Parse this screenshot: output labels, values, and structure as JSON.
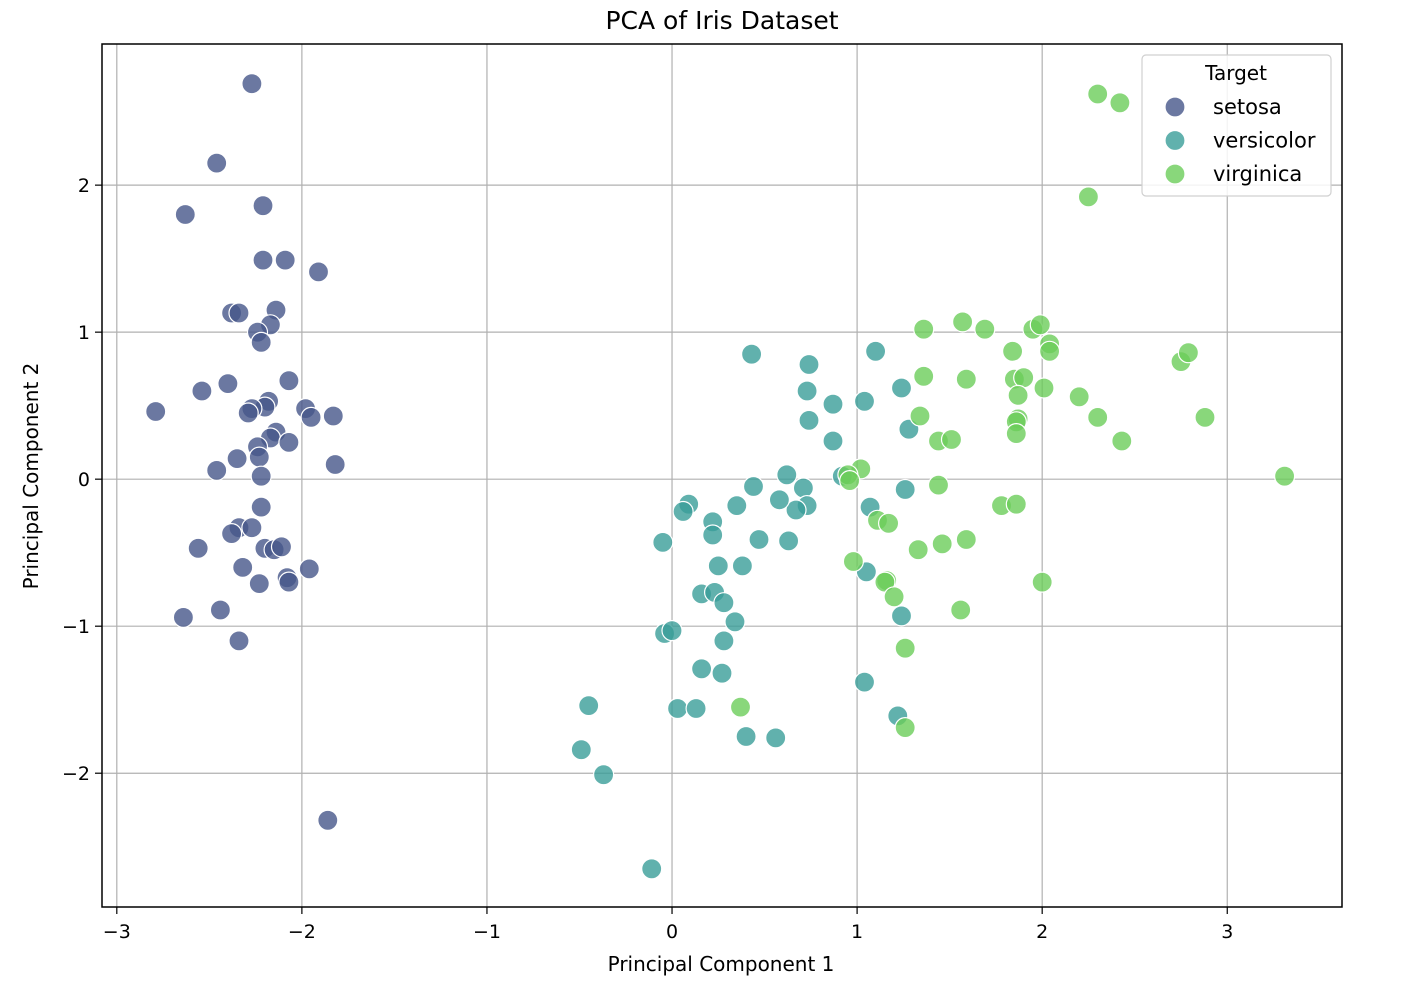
{
  "chart_data": {
    "type": "scatter",
    "title": "PCA of Iris Dataset",
    "xlabel": "Principal Component 1",
    "ylabel": "Principal Component 2",
    "xlim": [
      -3.08,
      3.62
    ],
    "ylim": [
      -2.91,
      2.96
    ],
    "x_ticks": [
      -3,
      -2,
      -1,
      0,
      1,
      2,
      3
    ],
    "x_tick_labels": [
      "−3",
      "−2",
      "−1",
      "0",
      "1",
      "2",
      "3"
    ],
    "y_ticks": [
      -2,
      -1,
      0,
      1,
      2
    ],
    "y_tick_labels": [
      "−2",
      "−1",
      "0",
      "1",
      "2"
    ],
    "grid": true,
    "legend": {
      "title": "Target",
      "placement": "top-right"
    },
    "series": [
      {
        "name": "setosa",
        "color": "#46568a",
        "points": [
          [
            -2.27,
            2.69
          ],
          [
            -2.46,
            2.15
          ],
          [
            -2.63,
            1.8
          ],
          [
            -2.21,
            1.86
          ],
          [
            -2.21,
            1.49
          ],
          [
            -2.09,
            1.49
          ],
          [
            -1.91,
            1.41
          ],
          [
            -2.38,
            1.13
          ],
          [
            -2.34,
            1.13
          ],
          [
            -2.14,
            1.15
          ],
          [
            -2.17,
            1.05
          ],
          [
            -2.24,
            1.0
          ],
          [
            -2.22,
            0.93
          ],
          [
            -2.07,
            0.67
          ],
          [
            -2.4,
            0.65
          ],
          [
            -2.54,
            0.6
          ],
          [
            -2.79,
            0.46
          ],
          [
            -2.18,
            0.53
          ],
          [
            -2.2,
            0.49
          ],
          [
            -2.27,
            0.48
          ],
          [
            -2.29,
            0.45
          ],
          [
            -1.98,
            0.48
          ],
          [
            -1.95,
            0.42
          ],
          [
            -1.83,
            0.43
          ],
          [
            -2.14,
            0.32
          ],
          [
            -2.17,
            0.28
          ],
          [
            -2.24,
            0.22
          ],
          [
            -2.07,
            0.25
          ],
          [
            -2.35,
            0.14
          ],
          [
            -2.23,
            0.15
          ],
          [
            -2.46,
            0.06
          ],
          [
            -2.22,
            0.02
          ],
          [
            -1.82,
            0.1
          ],
          [
            -2.22,
            -0.19
          ],
          [
            -2.34,
            -0.33
          ],
          [
            -2.38,
            -0.37
          ],
          [
            -2.27,
            -0.33
          ],
          [
            -2.2,
            -0.47
          ],
          [
            -2.15,
            -0.48
          ],
          [
            -2.11,
            -0.46
          ],
          [
            -2.56,
            -0.47
          ],
          [
            -2.32,
            -0.6
          ],
          [
            -2.08,
            -0.67
          ],
          [
            -2.07,
            -0.7
          ],
          [
            -1.96,
            -0.61
          ],
          [
            -2.23,
            -0.71
          ],
          [
            -2.44,
            -0.89
          ],
          [
            -2.64,
            -0.94
          ],
          [
            -2.34,
            -1.1
          ],
          [
            -1.86,
            -2.32
          ]
        ]
      },
      {
        "name": "versicolor",
        "color": "#3a9e98",
        "points": [
          [
            0.43,
            0.85
          ],
          [
            0.74,
            0.78
          ],
          [
            1.1,
            0.87
          ],
          [
            0.73,
            0.6
          ],
          [
            0.87,
            0.51
          ],
          [
            1.04,
            0.53
          ],
          [
            1.24,
            0.62
          ],
          [
            0.74,
            0.4
          ],
          [
            0.87,
            0.26
          ],
          [
            1.28,
            0.34
          ],
          [
            0.62,
            0.03
          ],
          [
            0.71,
            -0.06
          ],
          [
            0.73,
            -0.18
          ],
          [
            0.67,
            -0.21
          ],
          [
            0.58,
            -0.14
          ],
          [
            0.44,
            -0.05
          ],
          [
            0.35,
            -0.18
          ],
          [
            0.09,
            -0.17
          ],
          [
            0.06,
            -0.22
          ],
          [
            0.22,
            -0.29
          ],
          [
            0.22,
            -0.38
          ],
          [
            0.47,
            -0.41
          ],
          [
            0.63,
            -0.42
          ],
          [
            1.07,
            -0.19
          ],
          [
            1.26,
            -0.07
          ],
          [
            -0.05,
            -0.43
          ],
          [
            0.38,
            -0.59
          ],
          [
            0.25,
            -0.59
          ],
          [
            1.05,
            -0.63
          ],
          [
            1.24,
            -0.93
          ],
          [
            0.16,
            -0.78
          ],
          [
            0.23,
            -0.77
          ],
          [
            0.28,
            -0.84
          ],
          [
            0.34,
            -0.97
          ],
          [
            0.28,
            -1.1
          ],
          [
            -0.04,
            -1.05
          ],
          [
            0.0,
            -1.03
          ],
          [
            0.16,
            -1.29
          ],
          [
            0.27,
            -1.32
          ],
          [
            1.04,
            -1.38
          ],
          [
            0.03,
            -1.56
          ],
          [
            0.13,
            -1.56
          ],
          [
            -0.45,
            -1.54
          ],
          [
            -0.49,
            -1.84
          ],
          [
            -0.37,
            -2.01
          ],
          [
            0.4,
            -1.75
          ],
          [
            0.56,
            -1.76
          ],
          [
            1.22,
            -1.61
          ],
          [
            -0.11,
            -2.65
          ],
          [
            0.92,
            0.02
          ]
        ]
      },
      {
        "name": "virginica",
        "color": "#6ccd5a",
        "points": [
          [
            2.3,
            2.62
          ],
          [
            2.42,
            2.56
          ],
          [
            2.25,
            1.92
          ],
          [
            1.36,
            1.02
          ],
          [
            1.57,
            1.07
          ],
          [
            1.69,
            1.02
          ],
          [
            1.95,
            1.02
          ],
          [
            1.99,
            1.05
          ],
          [
            2.04,
            0.92
          ],
          [
            2.04,
            0.87
          ],
          [
            1.84,
            0.87
          ],
          [
            2.75,
            0.8
          ],
          [
            2.79,
            0.86
          ],
          [
            1.36,
            0.7
          ],
          [
            1.59,
            0.68
          ],
          [
            1.85,
            0.68
          ],
          [
            1.9,
            0.69
          ],
          [
            2.01,
            0.62
          ],
          [
            1.87,
            0.57
          ],
          [
            2.2,
            0.56
          ],
          [
            1.34,
            0.43
          ],
          [
            1.87,
            0.41
          ],
          [
            2.3,
            0.42
          ],
          [
            2.88,
            0.42
          ],
          [
            1.86,
            0.39
          ],
          [
            1.44,
            0.26
          ],
          [
            1.51,
            0.27
          ],
          [
            1.86,
            0.31
          ],
          [
            2.43,
            0.26
          ],
          [
            3.31,
            0.02
          ],
          [
            1.02,
            0.07
          ],
          [
            0.95,
            0.03
          ],
          [
            0.96,
            -0.01
          ],
          [
            1.44,
            -0.04
          ],
          [
            1.78,
            -0.18
          ],
          [
            1.86,
            -0.17
          ],
          [
            1.11,
            -0.28
          ],
          [
            1.17,
            -0.3
          ],
          [
            1.33,
            -0.48
          ],
          [
            1.46,
            -0.44
          ],
          [
            1.59,
            -0.41
          ],
          [
            0.98,
            -0.56
          ],
          [
            1.16,
            -0.69
          ],
          [
            1.15,
            -0.7
          ],
          [
            1.2,
            -0.8
          ],
          [
            1.56,
            -0.89
          ],
          [
            2.0,
            -0.7
          ],
          [
            1.26,
            -1.15
          ],
          [
            0.37,
            -1.55
          ],
          [
            1.26,
            -1.69
          ]
        ]
      }
    ]
  }
}
